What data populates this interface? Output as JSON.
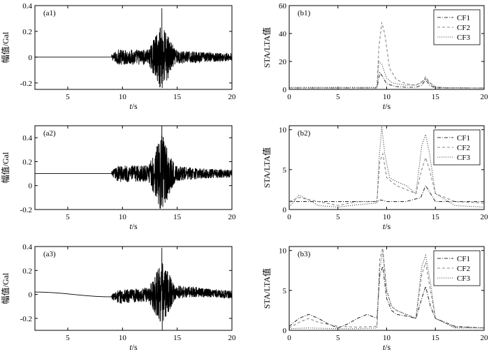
{
  "chart_data": [
    {
      "id": "a1",
      "type": "line",
      "label": "(a1)",
      "xlabel_italic": "t",
      "xlabel_unit": "/s",
      "ylabel": "幅值/Gal",
      "xlim": [
        2,
        20
      ],
      "ylim": [
        -0.25,
        0.4
      ],
      "xticks": [
        5,
        10,
        15,
        20
      ],
      "yticks": [
        -0.2,
        0,
        0.2,
        0.4
      ],
      "ytick_labels": [
        "-0.2",
        "0",
        "0.2",
        "0.4"
      ],
      "series": [
        {
          "name": "waveform",
          "signal": {
            "offset": 0,
            "drift_amp": 0,
            "onset_s": 9.0,
            "peak_s": 13.6,
            "end_s": 20,
            "noise_amp": 0.02,
            "pre_peak_amp": 0.06,
            "peak_amp": 0.38,
            "trough_amp": -0.24,
            "coda_amp": 0.03
          }
        }
      ]
    },
    {
      "id": "a2",
      "type": "line",
      "label": "(a2)",
      "xlabel_italic": "t",
      "xlabel_unit": "/s",
      "ylabel": "幅值/Gal",
      "xlim": [
        2,
        20
      ],
      "ylim": [
        -0.2,
        0.5
      ],
      "xticks": [
        5,
        10,
        15,
        20
      ],
      "yticks": [
        -0.2,
        0,
        0.2,
        0.4
      ],
      "ytick_labels": [
        "-0.2",
        "0",
        "0.2",
        "0.4"
      ],
      "series": [
        {
          "name": "waveform",
          "signal": {
            "offset": 0.1,
            "drift_amp": 0,
            "onset_s": 9.0,
            "peak_s": 13.6,
            "end_s": 20,
            "noise_amp": 0.02,
            "pre_peak_amp": 0.07,
            "peak_amp": 0.48,
            "trough_amp": -0.2,
            "coda_amp": 0.03
          }
        }
      ]
    },
    {
      "id": "a3",
      "type": "line",
      "label": "(a3)",
      "xlabel_italic": "t",
      "xlabel_unit": "/s",
      "ylabel": "幅值/Gal",
      "xlim": [
        2,
        20
      ],
      "ylim": [
        -0.3,
        0.4
      ],
      "xticks": [
        5,
        10,
        15,
        20
      ],
      "yticks": [
        -0.2,
        0,
        0.2,
        0.4
      ],
      "ytick_labels": [
        "-0.2",
        "0",
        "0.2",
        "0.4"
      ],
      "series": [
        {
          "name": "waveform",
          "signal": {
            "offset": 0,
            "drift_amp": 0.02,
            "onset_s": 9.0,
            "peak_s": 13.6,
            "end_s": 20,
            "noise_amp": 0.02,
            "pre_peak_amp": 0.06,
            "peak_amp": 0.39,
            "trough_amp": -0.3,
            "coda_amp": 0.03
          }
        }
      ]
    },
    {
      "id": "b1",
      "type": "line",
      "label": "(b1)",
      "xlabel_italic": "t",
      "xlabel_unit": "/s",
      "ylabel": "STA/LTA值",
      "xlim": [
        0,
        20
      ],
      "ylim": [
        0,
        60
      ],
      "xticks": [
        0,
        5,
        10,
        15,
        20
      ],
      "yticks": [
        0,
        20,
        40,
        60
      ],
      "legend": [
        "CF1",
        "CF2",
        "CF3"
      ],
      "legend_position": "top-right",
      "series": [
        {
          "name": "CF1",
          "style": "dashdot",
          "points": [
            [
              0,
              1
            ],
            [
              5,
              1
            ],
            [
              9,
              1
            ],
            [
              9.3,
              12
            ],
            [
              9.6,
              9
            ],
            [
              10,
              4
            ],
            [
              11,
              2
            ],
            [
              12,
              1.5
            ],
            [
              13,
              1.5
            ],
            [
              13.6,
              3
            ],
            [
              14,
              7
            ],
            [
              14.4,
              3
            ],
            [
              15,
              1
            ],
            [
              20,
              1
            ]
          ]
        },
        {
          "name": "CF2",
          "style": "dashed",
          "points": [
            [
              0,
              1
            ],
            [
              5,
              1
            ],
            [
              9,
              1
            ],
            [
              9.2,
              30
            ],
            [
              9.5,
              48
            ],
            [
              9.8,
              40
            ],
            [
              10.3,
              15
            ],
            [
              11,
              7
            ],
            [
              12,
              4
            ],
            [
              13,
              3
            ],
            [
              13.7,
              6
            ],
            [
              14,
              9
            ],
            [
              14.4,
              5
            ],
            [
              15,
              2
            ],
            [
              16,
              1
            ],
            [
              20,
              1
            ]
          ]
        },
        {
          "name": "CF3",
          "style": "dotted",
          "points": [
            [
              0,
              1.5
            ],
            [
              5,
              1.5
            ],
            [
              9,
              1.5
            ],
            [
              9.2,
              20
            ],
            [
              9.5,
              18
            ],
            [
              10,
              8
            ],
            [
              10.5,
              5
            ],
            [
              11,
              4
            ],
            [
              12,
              3
            ],
            [
              13,
              3
            ],
            [
              13.6,
              5
            ],
            [
              14,
              8
            ],
            [
              14.5,
              4
            ],
            [
              15,
              1.5
            ],
            [
              20,
              1
            ]
          ]
        }
      ]
    },
    {
      "id": "b2",
      "type": "line",
      "label": "(b2)",
      "xlabel_italic": "t",
      "xlabel_unit": "/s",
      "ylabel": "STA/LTA值",
      "xlim": [
        0,
        20
      ],
      "ylim": [
        0,
        10.5
      ],
      "xticks": [
        0,
        5,
        10,
        15,
        20
      ],
      "yticks": [
        0,
        5,
        10
      ],
      "legend": [
        "CF1",
        "CF2",
        "CF3"
      ],
      "legend_position": "top-right",
      "series": [
        {
          "name": "CF1",
          "style": "dashdot",
          "points": [
            [
              0,
              1
            ],
            [
              5,
              1
            ],
            [
              9,
              1
            ],
            [
              9.4,
              1.2
            ],
            [
              10,
              1
            ],
            [
              12,
              1
            ],
            [
              13.5,
              1.5
            ],
            [
              14,
              3
            ],
            [
              14.5,
              2
            ],
            [
              15,
              1
            ],
            [
              20,
              1
            ]
          ]
        },
        {
          "name": "CF2",
          "style": "dashed",
          "points": [
            [
              0,
              1
            ],
            [
              1,
              1.5
            ],
            [
              3,
              1
            ],
            [
              5,
              0.5
            ],
            [
              7,
              1
            ],
            [
              9,
              1
            ],
            [
              9.3,
              6
            ],
            [
              9.6,
              7
            ],
            [
              10,
              4
            ],
            [
              10.5,
              3.5
            ],
            [
              11,
              3
            ],
            [
              12,
              2.5
            ],
            [
              13,
              2
            ],
            [
              13.6,
              5
            ],
            [
              14,
              6.5
            ],
            [
              14.4,
              5
            ],
            [
              15,
              2
            ],
            [
              17,
              1
            ],
            [
              20,
              0.8
            ]
          ]
        },
        {
          "name": "CF3",
          "style": "dotted",
          "points": [
            [
              0,
              0.3
            ],
            [
              1,
              1.8
            ],
            [
              2,
              1.2
            ],
            [
              3,
              0.5
            ],
            [
              5,
              0.3
            ],
            [
              7,
              0.6
            ],
            [
              9,
              0.8
            ],
            [
              9.2,
              6
            ],
            [
              9.5,
              10.4
            ],
            [
              9.8,
              7
            ],
            [
              10.3,
              4
            ],
            [
              11,
              3.5
            ],
            [
              12,
              3
            ],
            [
              13,
              2
            ],
            [
              13.6,
              8
            ],
            [
              14,
              9.4
            ],
            [
              14.4,
              7
            ],
            [
              15,
              2
            ],
            [
              17,
              0.5
            ],
            [
              20,
              0.3
            ]
          ]
        }
      ]
    },
    {
      "id": "b3",
      "type": "line",
      "label": "(b3)",
      "xlabel_italic": "t",
      "xlabel_unit": "/s",
      "ylabel": "STA/LTA值",
      "xlim": [
        0,
        20
      ],
      "ylim": [
        0,
        10.5
      ],
      "xticks": [
        0,
        5,
        10,
        15,
        20
      ],
      "yticks": [
        0,
        5,
        10
      ],
      "legend": [
        "CF1",
        "CF2",
        "CF3"
      ],
      "legend_position": "top-right",
      "series": [
        {
          "name": "CF1",
          "style": "dashdot",
          "points": [
            [
              0,
              0.5
            ],
            [
              1,
              1.5
            ],
            [
              2,
              2
            ],
            [
              3,
              1.5
            ],
            [
              4,
              0.8
            ],
            [
              5,
              0.3
            ],
            [
              6,
              0.8
            ],
            [
              7,
              1.5
            ],
            [
              8,
              2
            ],
            [
              9,
              1.5
            ],
            [
              9.3,
              7
            ],
            [
              9.6,
              8
            ],
            [
              10,
              4
            ],
            [
              10.5,
              2.5
            ],
            [
              11,
              2
            ],
            [
              12,
              1.8
            ],
            [
              13,
              1.5
            ],
            [
              13.6,
              4
            ],
            [
              14,
              5.5
            ],
            [
              14.5,
              3
            ],
            [
              15,
              1.5
            ],
            [
              17,
              0.5
            ],
            [
              20,
              0.3
            ]
          ]
        },
        {
          "name": "CF2",
          "style": "dashed",
          "points": [
            [
              0,
              0.3
            ],
            [
              1,
              1
            ],
            [
              2,
              1.5
            ],
            [
              3,
              1
            ],
            [
              5,
              0.5
            ],
            [
              7,
              0.4
            ],
            [
              9,
              0.5
            ],
            [
              9.3,
              9
            ],
            [
              9.6,
              10.3
            ],
            [
              10,
              5
            ],
            [
              10.5,
              3
            ],
            [
              11,
              2.5
            ],
            [
              12,
              2
            ],
            [
              13,
              1.5
            ],
            [
              13.6,
              7
            ],
            [
              14,
              8.5
            ],
            [
              14.5,
              5
            ],
            [
              15,
              1.5
            ],
            [
              17,
              0.4
            ],
            [
              20,
              0.3
            ]
          ]
        },
        {
          "name": "CF3",
          "style": "dotted",
          "points": [
            [
              0,
              0.2
            ],
            [
              2,
              0.3
            ],
            [
              5,
              0.2
            ],
            [
              7,
              0.2
            ],
            [
              9,
              0.3
            ],
            [
              9.3,
              8
            ],
            [
              9.6,
              9.8
            ],
            [
              10,
              5
            ],
            [
              10.5,
              3
            ],
            [
              11,
              2.5
            ],
            [
              12,
              2
            ],
            [
              13,
              1.5
            ],
            [
              13.6,
              8
            ],
            [
              14,
              9.4
            ],
            [
              14.5,
              6
            ],
            [
              15,
              1.5
            ],
            [
              17,
              0.3
            ],
            [
              20,
              0.3
            ]
          ]
        }
      ]
    }
  ]
}
